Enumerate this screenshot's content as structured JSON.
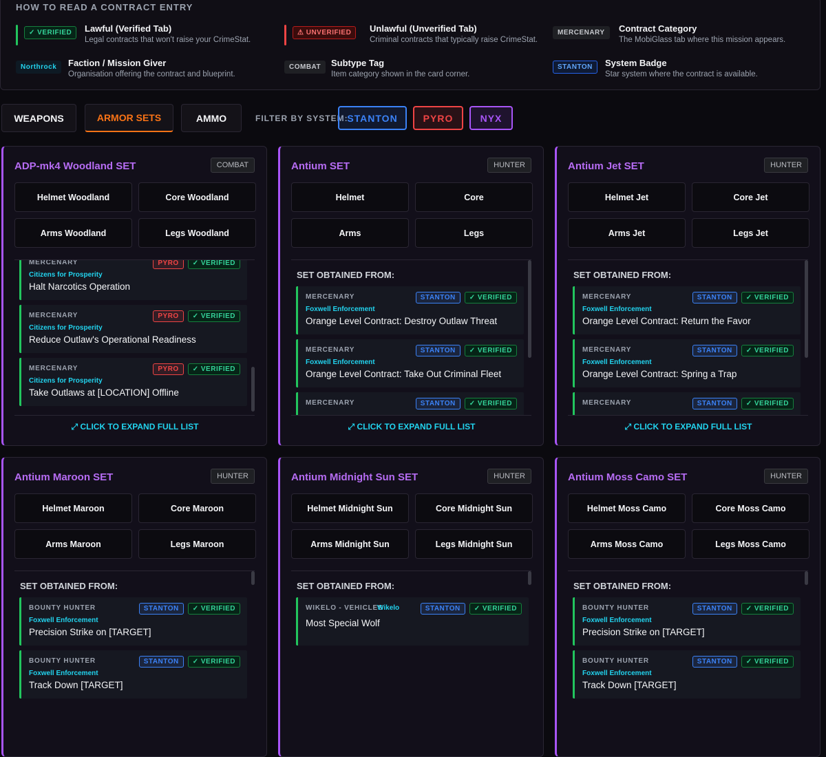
{
  "legend": {
    "title": "HOW TO READ A CONTRACT ENTRY",
    "entries": [
      {
        "badge": "✓ VERIFIED",
        "title": "Lawful (Verified Tab)",
        "desc": "Legal contracts that won't raise your CrimeStat."
      },
      {
        "badge": "⚠ UNVERIFIED",
        "title": "Unlawful (Unverified Tab)",
        "desc": "Criminal contracts that typically raise CrimeStat."
      },
      {
        "badge": "MERCENARY",
        "title": "Contract Category",
        "desc": "The MobiGlass tab where this mission appears."
      },
      {
        "badge": "Northrock",
        "title": "Faction / Mission Giver",
        "desc": "Organisation offering the contract and blueprint."
      },
      {
        "badge": "COMBAT",
        "title": "Subtype Tag",
        "desc": "Item category shown in the card corner."
      },
      {
        "badge": "STANTON",
        "title": "System Badge",
        "desc": "Star system where the contract is available."
      }
    ]
  },
  "tabs": {
    "items": [
      "WEAPONS",
      "ARMOR SETS",
      "AMMO"
    ],
    "active": 1
  },
  "filter": {
    "label": "FILTER BY SYSTEM:",
    "systems": [
      {
        "label": "STANTON",
        "color": "#3b82f6"
      },
      {
        "label": "PYRO",
        "color": "#ef4444"
      },
      {
        "label": "NYX",
        "color": "#a855f7"
      }
    ]
  },
  "cards": [
    {
      "title": "ADP-mk4 Woodland SET",
      "tag": "COMBAT",
      "pieces": [
        "Helmet Woodland",
        "Core Woodland",
        "Arms Woodland",
        "Legs Woodland"
      ],
      "contracts": [
        {
          "category": "MERCENARY",
          "faction": "Citizens for Prosperity",
          "system": "PYRO",
          "status": "✓ VERIFIED",
          "name": "Halt Narcotics Operation"
        },
        {
          "category": "MERCENARY",
          "faction": "Citizens for Prosperity",
          "system": "PYRO",
          "status": "✓ VERIFIED",
          "name": "Reduce Outlaw's Operational Readiness"
        },
        {
          "category": "MERCENARY",
          "faction": "Citizens for Prosperity",
          "system": "PYRO",
          "status": "✓ VERIFIED",
          "name": "Take Outlaws at [LOCATION] Offline"
        }
      ],
      "expand": "⤢ CLICK TO EXPAND FULL LIST"
    },
    {
      "title": "Antium SET",
      "tag": "HUNTER",
      "pieces": [
        "Helmet",
        "Core",
        "Arms",
        "Legs"
      ],
      "obtained": "SET OBTAINED FROM:",
      "contracts": [
        {
          "category": "MERCENARY",
          "faction": "Foxwell Enforcement",
          "system": "STANTON",
          "status": "✓ VERIFIED",
          "name": "Orange Level Contract: Destroy Outlaw Threat"
        },
        {
          "category": "MERCENARY",
          "faction": "Foxwell Enforcement",
          "system": "STANTON",
          "status": "✓ VERIFIED",
          "name": "Orange Level Contract: Take Out Criminal Fleet"
        },
        {
          "category": "MERCENARY",
          "system": "STANTON",
          "status": "✓ VERIFIED"
        }
      ],
      "expand": "⤢ CLICK TO EXPAND FULL LIST"
    },
    {
      "title": "Antium Jet SET",
      "tag": "HUNTER",
      "pieces": [
        "Helmet Jet",
        "Core Jet",
        "Arms Jet",
        "Legs Jet"
      ],
      "obtained": "SET OBTAINED FROM:",
      "contracts": [
        {
          "category": "MERCENARY",
          "faction": "Foxwell Enforcement",
          "system": "STANTON",
          "status": "✓ VERIFIED",
          "name": "Orange Level Contract: Return the Favor"
        },
        {
          "category": "MERCENARY",
          "faction": "Foxwell Enforcement",
          "system": "STANTON",
          "status": "✓ VERIFIED",
          "name": "Orange Level Contract: Spring a Trap"
        },
        {
          "category": "MERCENARY",
          "system": "STANTON",
          "status": "✓ VERIFIED"
        }
      ],
      "expand": "⤢ CLICK TO EXPAND FULL LIST"
    },
    {
      "title": "Antium Maroon SET",
      "tag": "HUNTER",
      "pieces": [
        "Helmet Maroon",
        "Core Maroon",
        "Arms Maroon",
        "Legs Maroon"
      ],
      "obtained": "SET OBTAINED FROM:",
      "contracts": [
        {
          "category": "BOUNTY HUNTER",
          "faction": "Foxwell Enforcement",
          "system": "STANTON",
          "status": "✓ VERIFIED",
          "name": "Precision Strike on [TARGET]"
        },
        {
          "category": "BOUNTY HUNTER",
          "faction": "Foxwell Enforcement",
          "system": "STANTON",
          "status": "✓ VERIFIED",
          "name": "Track Down [TARGET]"
        }
      ]
    },
    {
      "title": "Antium Midnight Sun SET",
      "tag": "HUNTER",
      "pieces": [
        "Helmet Midnight Sun",
        "Core Midnight Sun",
        "Arms Midnight Sun",
        "Legs Midnight Sun"
      ],
      "obtained": "SET OBTAINED FROM:",
      "contracts": [
        {
          "category": "WIKELO - VEHICLES",
          "faction": "Wikelo",
          "system": "STANTON",
          "status": "✓ VERIFIED",
          "name": "Most Special Wolf",
          "inline": true
        }
      ]
    },
    {
      "title": "Antium Moss Camo SET",
      "tag": "HUNTER",
      "pieces": [
        "Helmet Moss Camo",
        "Core Moss Camo",
        "Arms Moss Camo",
        "Legs Moss Camo"
      ],
      "obtained": "SET OBTAINED FROM:",
      "contracts": [
        {
          "category": "BOUNTY HUNTER",
          "faction": "Foxwell Enforcement",
          "system": "STANTON",
          "status": "✓ VERIFIED",
          "name": "Precision Strike on [TARGET]"
        },
        {
          "category": "BOUNTY HUNTER",
          "faction": "Foxwell Enforcement",
          "system": "STANTON",
          "status": "✓ VERIFIED",
          "name": "Track Down [TARGET]"
        }
      ]
    }
  ]
}
